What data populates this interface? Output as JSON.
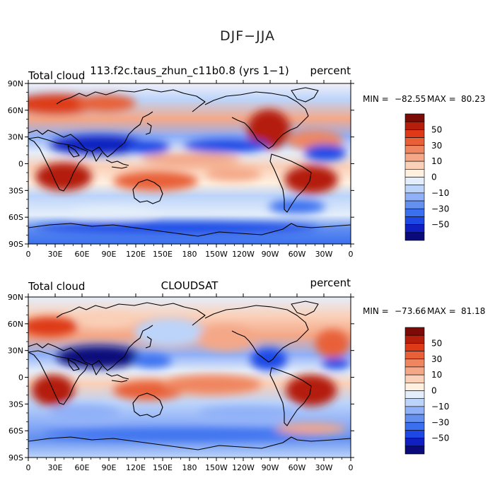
{
  "page_title": "DJF−JJA",
  "axes": {
    "lat_ticks": [
      "90N",
      "60N",
      "30N",
      "0",
      "30S",
      "60S",
      "90S"
    ],
    "lon_ticks": [
      "0",
      "30E",
      "60E",
      "90E",
      "120E",
      "150E",
      "180",
      "150W",
      "120W",
      "90W",
      "60W",
      "30W",
      "0"
    ]
  },
  "colorbar": {
    "colors": [
      "#0a0a7a",
      "#1020c0",
      "#1e48e6",
      "#3a70f0",
      "#6490f0",
      "#90b0f8",
      "#bcd4fa",
      "#e4eefa",
      "#fff0e0",
      "#fad0b8",
      "#f4a888",
      "#ef8660",
      "#e86038",
      "#de3a18",
      "#b41e0a",
      "#7c0a06"
    ],
    "labels": [
      "50",
      "30",
      "10",
      "0",
      "−10",
      "−30",
      "−50"
    ]
  },
  "panels": [
    {
      "left_title": "Total cloud",
      "center_title": "113.f2c.taus_zhun_c11b0.8 (yrs 1−1)",
      "right_title": "percent",
      "min_label": "MIN =",
      "min_value": "−82.55",
      "max_label": "MAX =",
      "max_value": "80.23"
    },
    {
      "left_title": "Total cloud",
      "center_title": "CLOUDSAT",
      "right_title": "percent",
      "min_label": "MIN =",
      "min_value": "−73.66",
      "max_label": "MAX =",
      "max_value": "81.18"
    }
  ]
}
